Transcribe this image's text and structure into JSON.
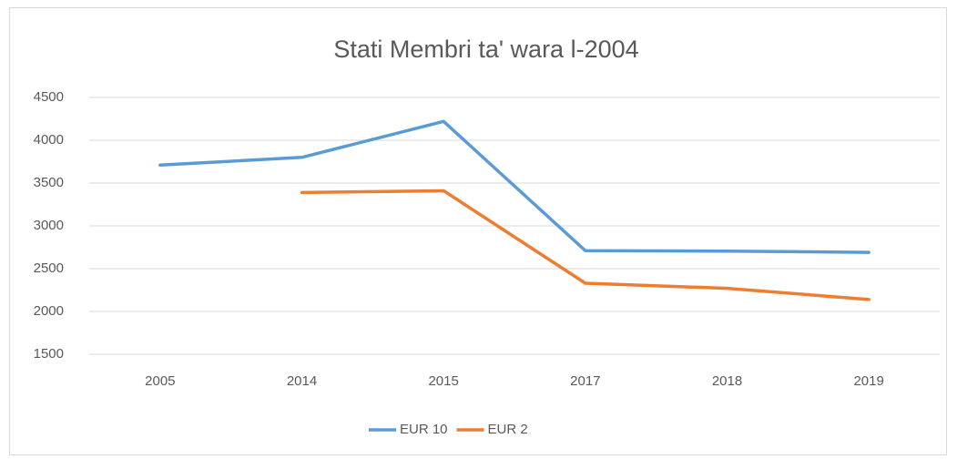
{
  "chart_data": {
    "type": "line",
    "title": "Stati Membri ta' wara l-2004",
    "categories": [
      "2005",
      "2014",
      "2015",
      "2017",
      "2018",
      "2019"
    ],
    "series": [
      {
        "name": "EUR 10",
        "color": "#5b9bd5",
        "values": [
          3710,
          3800,
          4220,
          2710,
          2705,
          2690
        ]
      },
      {
        "name": "EUR 2",
        "color": "#ed7d31",
        "values": [
          null,
          3390,
          3410,
          2330,
          2270,
          2140
        ]
      }
    ],
    "ylim": [
      1500,
      4500
    ],
    "yticks": [
      1500,
      2000,
      2500,
      3000,
      3500,
      4000,
      4500
    ],
    "grid": true,
    "legend": "bottom"
  }
}
